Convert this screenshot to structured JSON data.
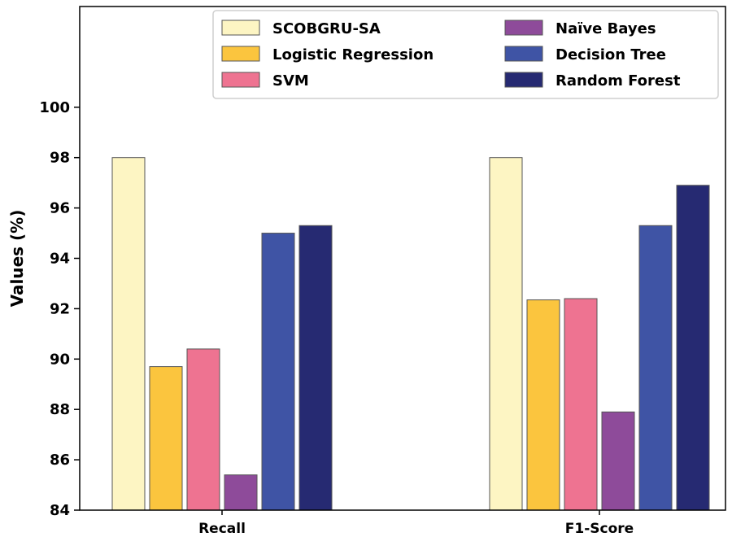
{
  "chart_data": {
    "type": "bar",
    "categories": [
      "Recall",
      "F1-Score"
    ],
    "series": [
      {
        "name": "SCOBGRU-SA",
        "color": "#fdf5c3",
        "values": [
          98.0,
          98.0
        ]
      },
      {
        "name": "Logistic Regression",
        "color": "#fbc53e",
        "values": [
          89.7,
          92.35
        ]
      },
      {
        "name": "SVM",
        "color": "#ee7391",
        "values": [
          90.4,
          92.4
        ]
      },
      {
        "name": "Naïve Bayes",
        "color": "#8e4b9a",
        "values": [
          85.4,
          87.9
        ]
      },
      {
        "name": "Decision Tree",
        "color": "#3f54a5",
        "values": [
          95.0,
          95.3
        ]
      },
      {
        "name": "Random Forest",
        "color": "#262a72",
        "values": [
          95.3,
          96.9
        ]
      }
    ],
    "xlabel": "",
    "ylabel": "Values (%)",
    "ylim": [
      84,
      104
    ],
    "yticks": [
      84,
      86,
      88,
      90,
      92,
      94,
      96,
      98,
      100
    ],
    "grid": false,
    "legend_position": "top-right"
  }
}
